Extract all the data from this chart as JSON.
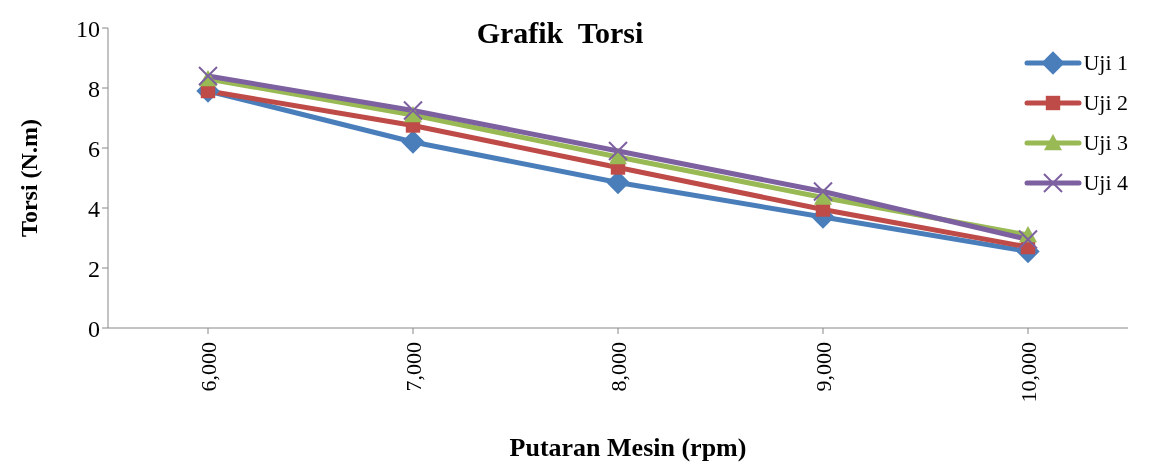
{
  "chart_data": {
    "type": "line",
    "title": "Grafik  Torsi",
    "xlabel": "Putaran Mesin (rpm)",
    "ylabel": "Torsi (N.m)",
    "categories": [
      "6,000",
      "7,000",
      "8,000",
      "9,000",
      "10,000"
    ],
    "series": [
      {
        "name": "Uji 1",
        "color": "#4a7ebb",
        "marker": "diamond",
        "values": [
          7.9,
          6.2,
          4.85,
          3.7,
          2.55
        ]
      },
      {
        "name": "Uji 2",
        "color": "#be4b48",
        "marker": "square",
        "values": [
          7.9,
          6.75,
          5.35,
          3.95,
          2.7
        ]
      },
      {
        "name": "Uji 3",
        "color": "#98b954",
        "marker": "triangle",
        "values": [
          8.3,
          7.1,
          5.7,
          4.35,
          3.1
        ]
      },
      {
        "name": "Uji 4",
        "color": "#7d60a0",
        "marker": "cross",
        "values": [
          8.4,
          7.25,
          5.9,
          4.55,
          2.95
        ]
      }
    ],
    "ylim": [
      0,
      10
    ],
    "yticks": [
      0,
      2,
      4,
      6,
      8,
      10
    ],
    "grid": false,
    "legend": "top right"
  }
}
